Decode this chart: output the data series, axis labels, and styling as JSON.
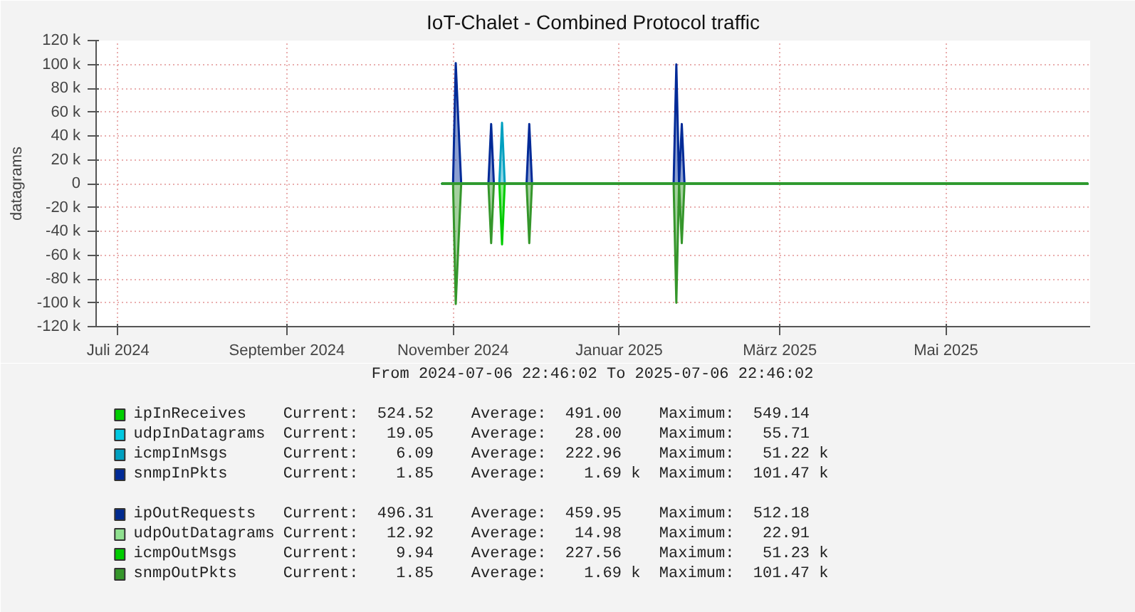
{
  "chart_data": {
    "type": "area",
    "title": "IoT-Chalet - Combined Protocol traffic",
    "ylabel": "datagrams",
    "x": [
      "2024-11-11",
      "2024-11-15",
      "2024-11-16",
      "2024-11-17",
      "2024-11-18",
      "2024-11-28",
      "2024-11-29",
      "2024-11-30",
      "2024-12-02",
      "2024-12-03",
      "2024-12-04",
      "2024-12-12",
      "2024-12-13",
      "2024-12-14",
      "2025-02-04",
      "2025-02-05",
      "2025-02-06",
      "2025-02-07",
      "2025-02-08",
      "2025-07-06"
    ],
    "series": [
      {
        "name": "ipInReceives",
        "color": "#00cf00",
        "values": [
          null,
          null,
          null,
          null,
          null,
          null,
          null,
          null,
          null,
          null,
          null,
          null,
          null,
          null,
          null,
          null,
          null,
          null,
          null,
          null
        ]
      },
      {
        "name": "udpInDatagrams",
        "color": "#00c8e0",
        "values": [
          null,
          null,
          null,
          null,
          null,
          null,
          null,
          null,
          null,
          null,
          null,
          null,
          null,
          null,
          null,
          null,
          null,
          null,
          null,
          null
        ]
      },
      {
        "name": "icmpInMsgs",
        "color": "#00a0c0",
        "values": [
          0,
          0,
          0,
          0,
          0,
          0,
          0,
          0,
          0,
          51000,
          0,
          0,
          0,
          0,
          0,
          0,
          0,
          0,
          0,
          0
        ]
      },
      {
        "name": "snmpInPkts",
        "color": "#002a97",
        "values": [
          0,
          0,
          101000,
          50000,
          0,
          0,
          50000,
          0,
          0,
          0,
          0,
          0,
          50000,
          0,
          0,
          100000,
          0,
          50000,
          0,
          0
        ]
      },
      {
        "name": "ipOutRequests",
        "color": "#002a8f",
        "values": [
          null,
          null,
          null,
          null,
          null,
          null,
          null,
          null,
          null,
          null,
          null,
          null,
          null,
          null,
          null,
          null,
          null,
          null,
          null,
          null
        ]
      },
      {
        "name": "udpOutDatagrams",
        "color": "#8fe08f",
        "values": [
          null,
          null,
          null,
          null,
          null,
          null,
          null,
          null,
          null,
          null,
          null,
          null,
          null,
          null,
          null,
          null,
          null,
          null,
          null,
          null
        ]
      },
      {
        "name": "icmpOutMsgs",
        "color": "#00cc00",
        "values": [
          0,
          0,
          0,
          0,
          0,
          0,
          0,
          0,
          0,
          -51000,
          0,
          0,
          0,
          0,
          0,
          0,
          0,
          0,
          0,
          0
        ]
      },
      {
        "name": "snmpOutPkts",
        "color": "#35962b",
        "values": [
          0,
          0,
          -101000,
          -50000,
          0,
          0,
          -50000,
          0,
          0,
          0,
          0,
          0,
          -50000,
          0,
          0,
          -100000,
          0,
          -50000,
          0,
          0
        ]
      }
    ],
    "xlim": [
      "2024-07-06T22:46",
      "2025-07-06T22:46"
    ],
    "xticks": [
      {
        "value": "2024-07-15",
        "label": "Juli 2024"
      },
      {
        "value": "2024-09-15",
        "label": "September 2024"
      },
      {
        "value": "2024-11-15",
        "label": "November 2024"
      },
      {
        "value": "2025-01-15",
        "label": "Januar 2025"
      },
      {
        "value": "2025-03-15",
        "label": "März 2025"
      },
      {
        "value": "2025-05-15",
        "label": "Mai 2025"
      }
    ],
    "ylim": [
      -120000,
      120000
    ],
    "yticks": [
      {
        "value": -120000,
        "label": "-120 k"
      },
      {
        "value": -100000,
        "label": "-100 k"
      },
      {
        "value": -80000,
        "label": "-80 k"
      },
      {
        "value": -60000,
        "label": "-60 k"
      },
      {
        "value": -40000,
        "label": "-40 k"
      },
      {
        "value": -20000,
        "label": "-20 k"
      },
      {
        "value": 0,
        "label": "0"
      },
      {
        "value": 20000,
        "label": "20 k"
      },
      {
        "value": 40000,
        "label": "40 k"
      },
      {
        "value": 60000,
        "label": "60 k"
      },
      {
        "value": 80000,
        "label": "80 k"
      },
      {
        "value": 100000,
        "label": "100 k"
      },
      {
        "value": 120000,
        "label": "120 k"
      }
    ],
    "grid": true,
    "legend": "bottom",
    "annotations": [
      "From 2024-07-06 22:46:02 To 2025-07-06 22:46:02",
      "Current:  524.52    Average:  491.00    Maximum:  549.14",
      "Current:   19.05    Average:   28.00    Maximum:   55.71",
      "Current:    6.09    Average:  222.96    Maximum:   51.22 k",
      "Current:    1.85    Average:    1.69 k  Maximum:  101.47 k",
      "Current:  496.31    Average:  459.95    Maximum:  512.18",
      "Current:   12.92    Average:   14.98    Maximum:   22.91",
      "Current:    9.94    Average:  227.56    Maximum:   51.23 k",
      "Current:    1.85    Average:    1.69 k  Maximum:  101.47 k"
    ]
  }
}
